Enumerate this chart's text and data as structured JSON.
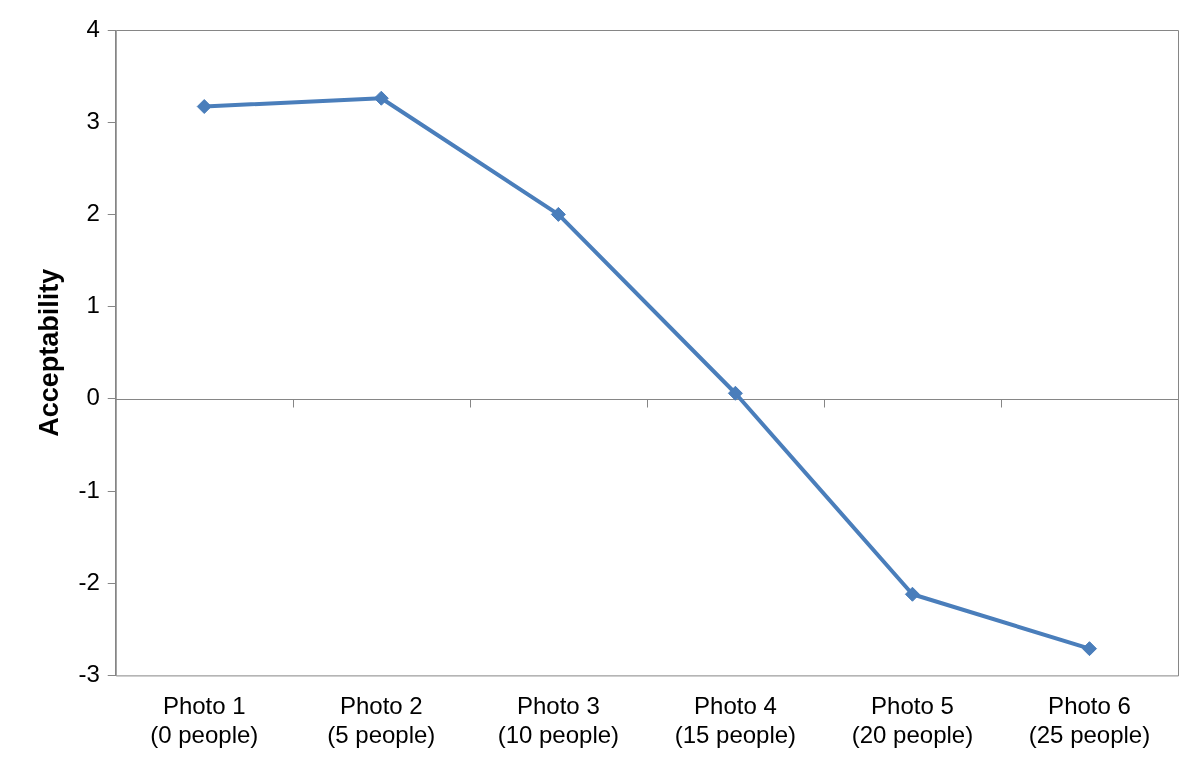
{
  "chart_data": {
    "type": "line",
    "ylabel": "Acceptability",
    "categories": [
      "Photo 1\n(0 people)",
      "Photo 2\n(5 people)",
      "Photo 3\n(10 people)",
      "Photo 4\n(15 people)",
      "Photo 5\n(20 people)",
      "Photo 6\n(25 people)"
    ],
    "series": [
      {
        "color": "#4a7ebb",
        "values": [
          3.17,
          3.26,
          2.0,
          0.06,
          -2.12,
          -2.71
        ]
      }
    ],
    "ylim": [
      -3,
      4
    ],
    "yticks": [
      -3,
      -2,
      -1,
      0,
      1,
      2,
      3,
      4
    ],
    "marker": "diamond",
    "line_style": "solid"
  }
}
